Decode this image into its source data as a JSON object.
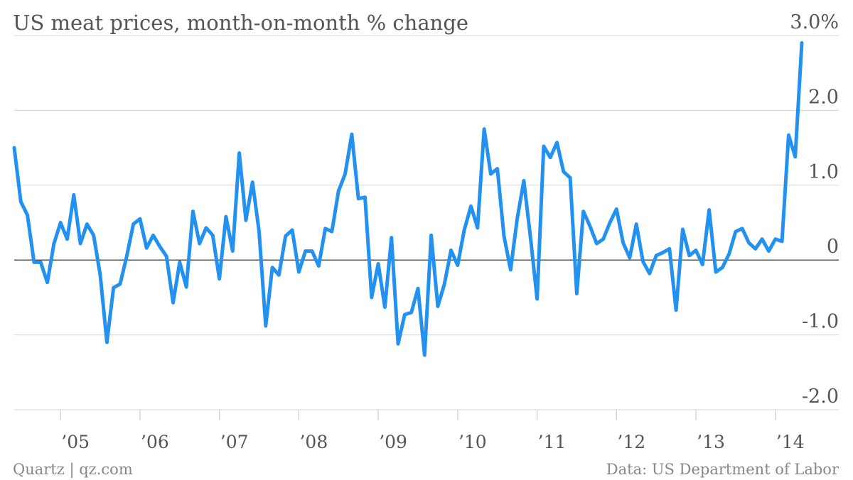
{
  "chart_data": {
    "type": "line",
    "title": "US meat prices, month-on-month % change",
    "source": "Data: US Department of Labor",
    "credit": "Quartz | qz.com",
    "categories": [
      null,
      null,
      null,
      null,
      null,
      null,
      null,
      "’05",
      null,
      null,
      null,
      null,
      null,
      null,
      null,
      null,
      null,
      null,
      null,
      "’06",
      null,
      null,
      null,
      null,
      null,
      null,
      null,
      null,
      null,
      null,
      null,
      "’07",
      null,
      null,
      null,
      null,
      null,
      null,
      null,
      null,
      null,
      null,
      null,
      "’08",
      null,
      null,
      null,
      null,
      null,
      null,
      null,
      null,
      null,
      null,
      null,
      "’09",
      null,
      null,
      null,
      null,
      null,
      null,
      null,
      null,
      null,
      null,
      null,
      "’10",
      null,
      null,
      null,
      null,
      null,
      null,
      null,
      null,
      null,
      null,
      null,
      "’11",
      null,
      null,
      null,
      null,
      null,
      null,
      null,
      null,
      null,
      null,
      null,
      "’12",
      null,
      null,
      null,
      null,
      null,
      null,
      null,
      null,
      null,
      null,
      null,
      "’13",
      null,
      null,
      null,
      null,
      null,
      null,
      null,
      null,
      null,
      null,
      null,
      "’14",
      null,
      null,
      null,
      null
    ],
    "series": [
      {
        "name": "Meat prices",
        "color": "#2391f0",
        "values": [
          1.5,
          0.78,
          0.6,
          -0.03,
          -0.03,
          -0.3,
          0.22,
          0.5,
          0.28,
          0.87,
          0.22,
          0.48,
          0.33,
          -0.2,
          -1.1,
          -0.37,
          -0.32,
          0.05,
          0.48,
          0.55,
          0.16,
          0.33,
          0.18,
          0.05,
          -0.57,
          -0.03,
          -0.36,
          0.65,
          0.22,
          0.43,
          0.33,
          -0.25,
          0.58,
          0.12,
          1.43,
          0.53,
          1.04,
          0.38,
          -0.88,
          -0.1,
          -0.2,
          0.32,
          0.4,
          -0.16,
          0.12,
          0.12,
          -0.08,
          0.42,
          0.38,
          0.92,
          1.15,
          1.68,
          0.82,
          0.84,
          -0.5,
          -0.05,
          -0.63,
          0.3,
          -1.12,
          -0.73,
          -0.7,
          -0.38,
          -1.27,
          0.33,
          -0.62,
          -0.32,
          0.13,
          -0.07,
          0.4,
          0.72,
          0.43,
          1.75,
          1.15,
          1.22,
          0.32,
          -0.13,
          0.55,
          1.06,
          0.3,
          -0.52,
          1.52,
          1.37,
          1.57,
          1.18,
          1.1,
          -0.45,
          0.65,
          0.45,
          0.22,
          0.28,
          0.5,
          0.68,
          0.23,
          0.03,
          0.48,
          -0.02,
          -0.18,
          0.06,
          0.1,
          0.15,
          -0.67,
          0.41,
          0.06,
          0.13,
          -0.06,
          0.67,
          -0.16,
          -0.1,
          0.08,
          0.38,
          0.42,
          0.23,
          0.15,
          0.28,
          0.12,
          0.28,
          0.25,
          1.67,
          1.38,
          2.9
        ]
      }
    ],
    "ylim": [
      -2,
      3
    ],
    "yticks": [
      {
        "value": -2,
        "label": "-2.0"
      },
      {
        "value": -1,
        "label": "-1.0"
      },
      0,
      {
        "value": 1,
        "label": "1.0"
      },
      {
        "value": 2,
        "label": "2.0"
      },
      {
        "value": 3,
        "label": "3.0%"
      }
    ],
    "grid": true
  }
}
